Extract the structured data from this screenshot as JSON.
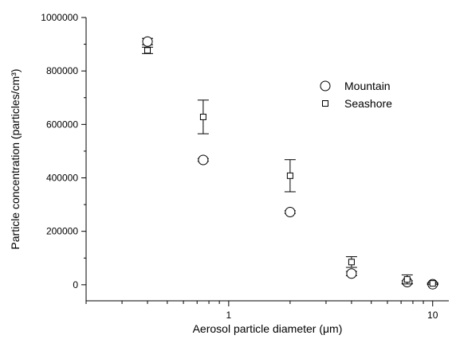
{
  "chart_data": {
    "type": "scatter",
    "title": "",
    "xlabel": "Aerosol particle diameter (μm)",
    "ylabel": "Particle concentration (particles/cm³)",
    "x_scale": "log",
    "xlim": [
      0.2,
      12
    ],
    "ylim": [
      -60000,
      1000000
    ],
    "x_ticks": [
      1,
      10
    ],
    "x_tick_labels": [
      "1",
      "10"
    ],
    "y_ticks": [
      0,
      200000,
      400000,
      600000,
      800000,
      1000000
    ],
    "y_tick_labels": [
      "0",
      "200000",
      "400000",
      "600000",
      "800000",
      "1000000"
    ],
    "legend_position": "top-right",
    "series": [
      {
        "name": "Mountain",
        "marker": "circle",
        "points": [
          {
            "x": 0.4,
            "y": 910000,
            "err": 12000
          },
          {
            "x": 0.75,
            "y": 467000,
            "err": 5000
          },
          {
            "x": 2.0,
            "y": 272000,
            "err": 5000
          },
          {
            "x": 4.0,
            "y": 42000,
            "err": 8000
          },
          {
            "x": 7.5,
            "y": 10000,
            "err": 5000
          },
          {
            "x": 10.0,
            "y": 2000,
            "err": 2000
          }
        ]
      },
      {
        "name": "Seashore",
        "marker": "square",
        "points": [
          {
            "x": 0.4,
            "y": 877000,
            "err": 12000
          },
          {
            "x": 0.75,
            "y": 628000,
            "err": 63000
          },
          {
            "x": 2.0,
            "y": 408000,
            "err": 60000
          },
          {
            "x": 4.0,
            "y": 85000,
            "err": 20000
          },
          {
            "x": 7.5,
            "y": 20000,
            "err": 17000
          },
          {
            "x": 10.0,
            "y": 5000,
            "err": 3000
          }
        ]
      }
    ]
  }
}
